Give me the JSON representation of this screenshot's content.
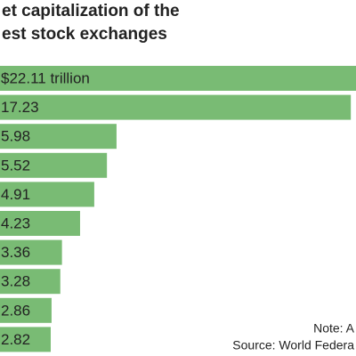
{
  "chart_data": {
    "type": "bar",
    "orientation": "horizontal",
    "title": [
      "et capitalization of the",
      "est stock exchanges"
    ],
    "values": [
      22.11,
      17.23,
      5.98,
      5.52,
      4.91,
      4.23,
      3.36,
      3.28,
      2.86,
      2.82
    ],
    "value_labels": [
      "$22.11 trillion",
      "17.23",
      "5.98",
      "5.52",
      "4.91",
      "4.23",
      "3.36",
      "3.28",
      "2.86",
      "2.82"
    ],
    "color": "#79bb74",
    "notes": [
      "Note: A",
      "Source: World Federa"
    ]
  }
}
